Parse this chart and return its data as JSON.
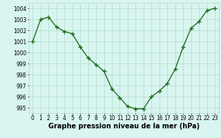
{
  "x": [
    0,
    1,
    2,
    3,
    4,
    5,
    6,
    7,
    8,
    9,
    10,
    11,
    12,
    13,
    14,
    15,
    16,
    17,
    18,
    19,
    20,
    21,
    22,
    23
  ],
  "y": [
    1001.0,
    1003.0,
    1003.2,
    1002.3,
    1001.9,
    1001.7,
    1000.5,
    999.5,
    998.9,
    998.3,
    996.7,
    995.9,
    995.1,
    994.9,
    994.9,
    996.0,
    996.5,
    997.2,
    998.5,
    1000.5,
    1002.2,
    1002.8,
    1003.8,
    1004.0
  ],
  "line_color": "#1a6b1a",
  "marker_color": "#1a6b1a",
  "bg_color": "#d8f5f0",
  "grid_color": "#b0d8c8",
  "xlabel": "Graphe pression niveau de la mer (hPa)",
  "xlabel_fontsize": 7,
  "xlabel_bold": true,
  "ylim": [
    994.5,
    1004.5
  ],
  "xlim": [
    -0.5,
    23.5
  ],
  "yticks": [
    995,
    996,
    997,
    998,
    999,
    1000,
    1001,
    1002,
    1003,
    1004
  ],
  "xticks": [
    0,
    1,
    2,
    3,
    4,
    5,
    6,
    7,
    8,
    9,
    10,
    11,
    12,
    13,
    14,
    15,
    16,
    17,
    18,
    19,
    20,
    21,
    22,
    23
  ],
  "tick_fontsize": 5.5,
  "line_width": 1.0,
  "marker_size": 4
}
